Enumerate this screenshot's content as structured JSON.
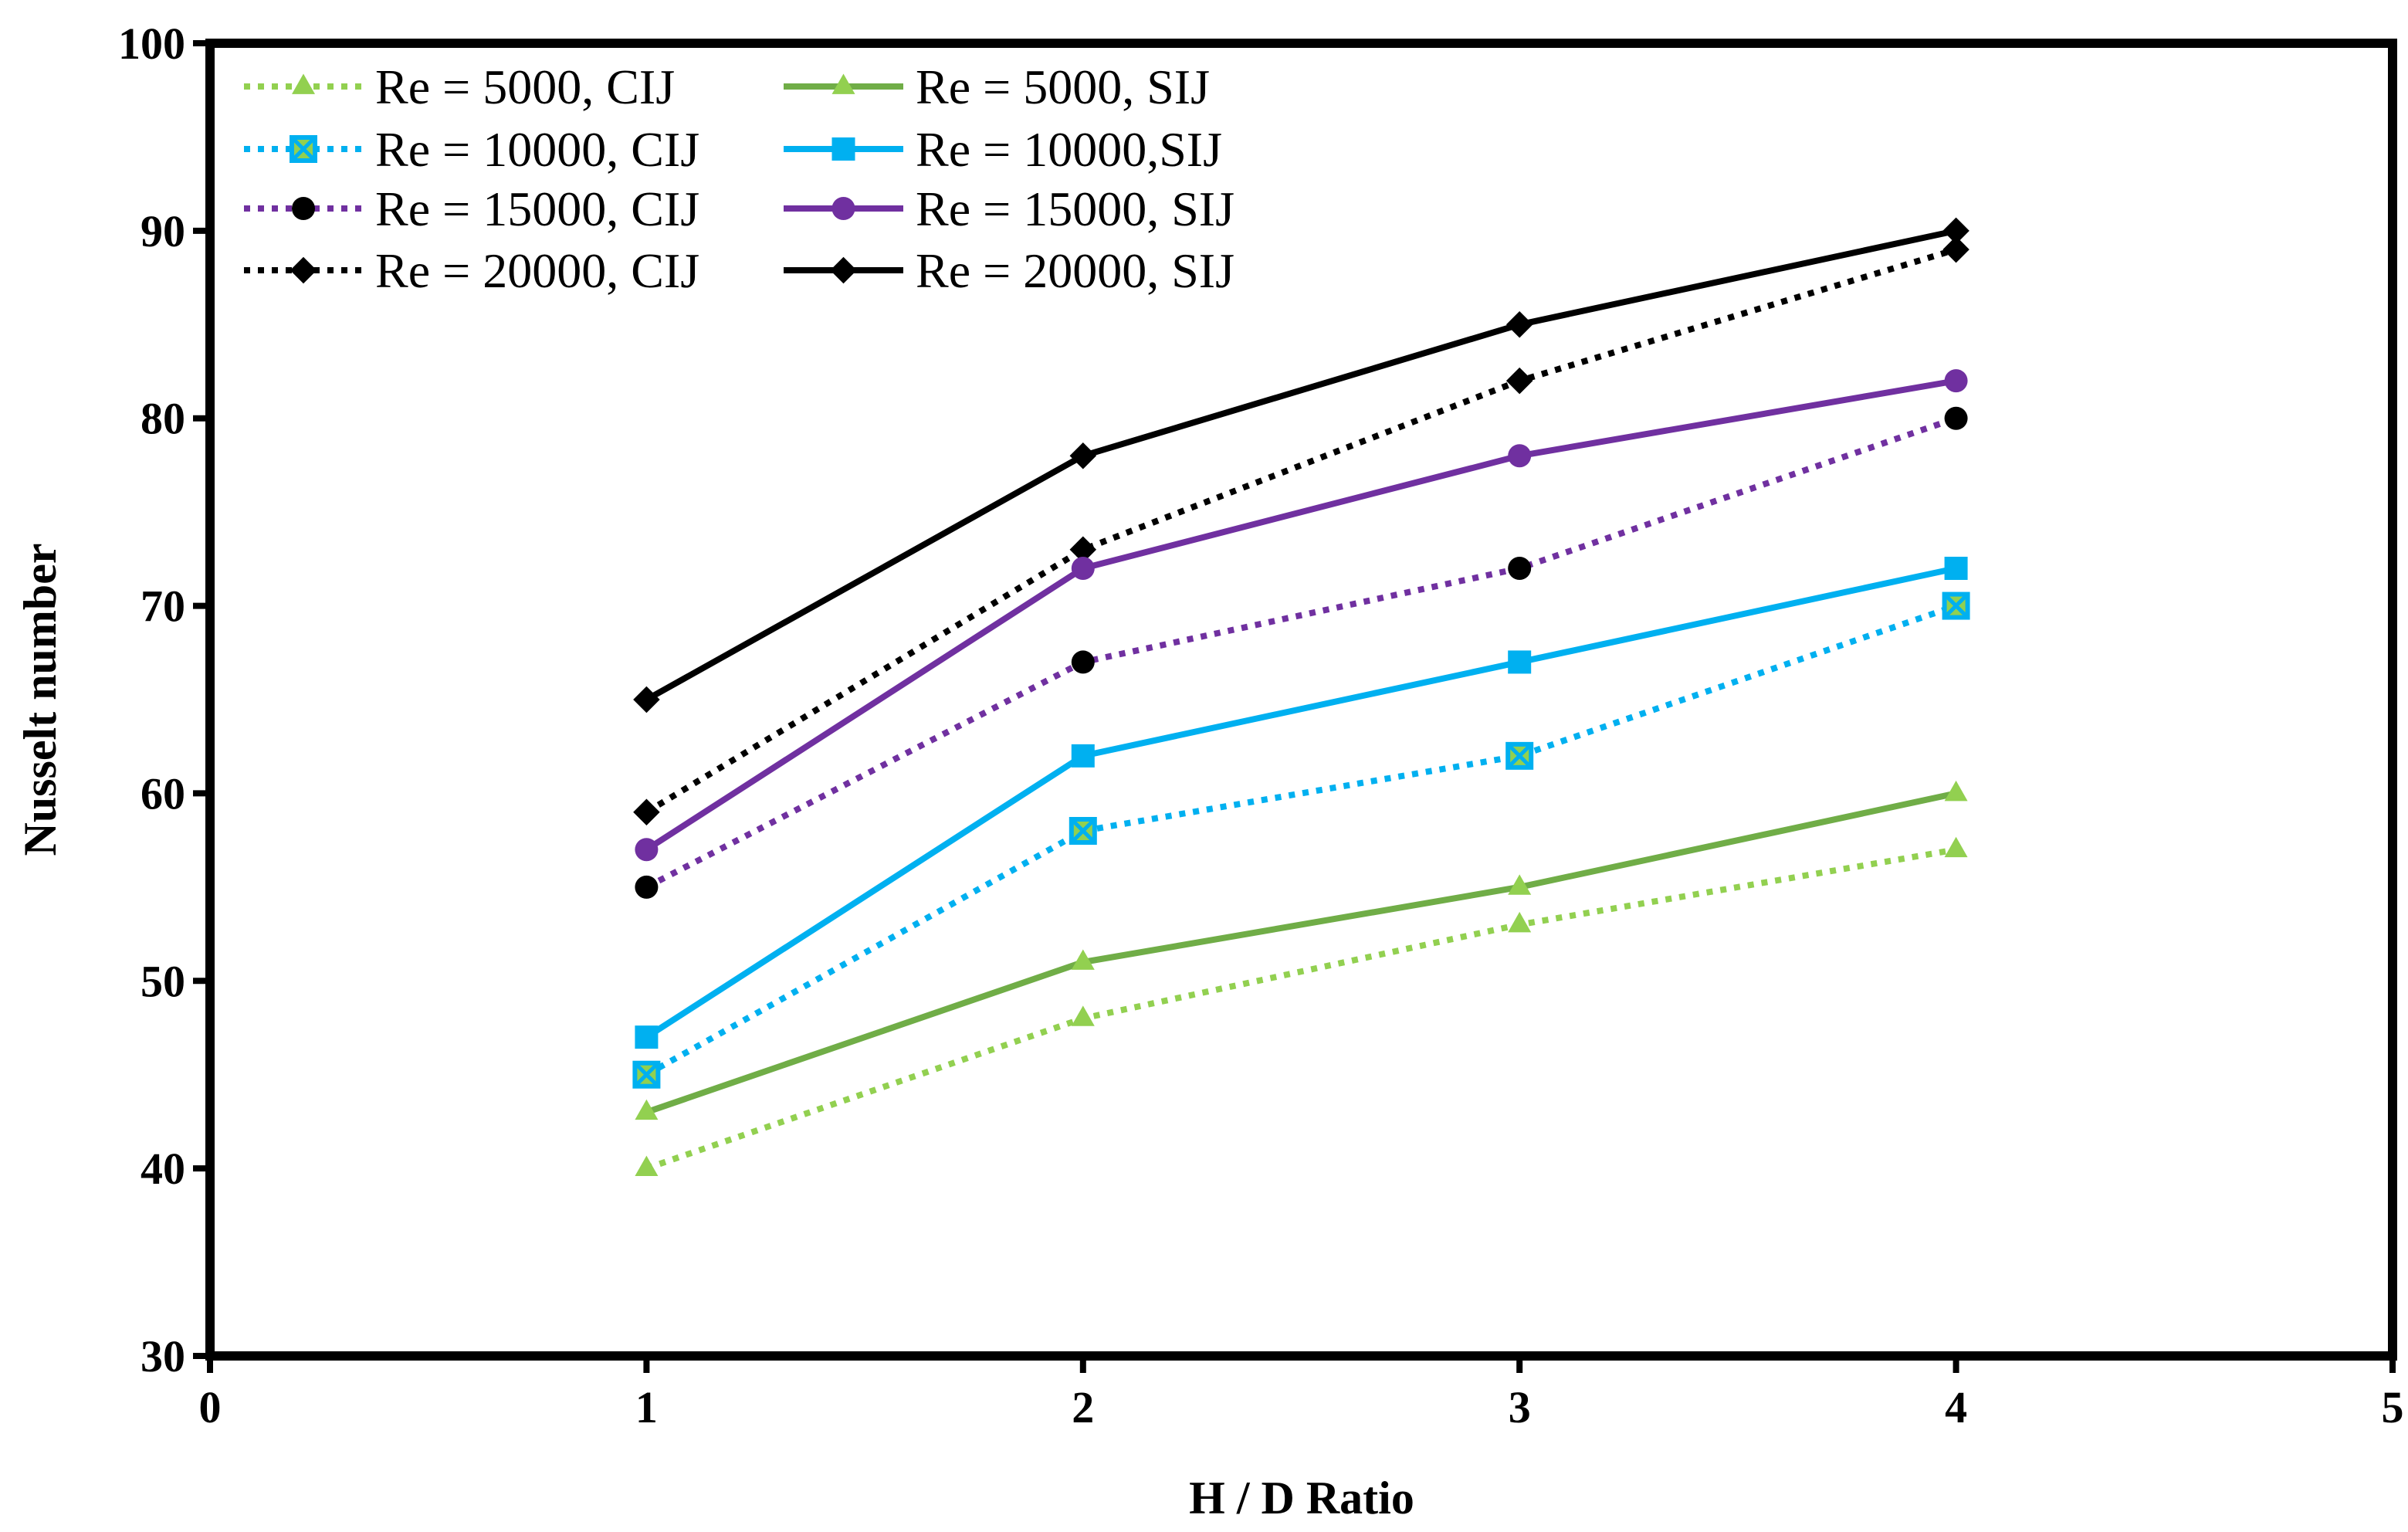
{
  "chart_data": {
    "type": "line",
    "title": "",
    "xlabel": "H / D Ratio",
    "ylabel": "Nusselt number",
    "xlim": [
      0,
      5
    ],
    "ylim": [
      30,
      100
    ],
    "xticks": [
      0,
      1,
      2,
      3,
      4,
      5
    ],
    "yticks": [
      30,
      40,
      50,
      60,
      70,
      80,
      90,
      100
    ],
    "grid": false,
    "legend_position": "top-left",
    "x": [
      1,
      2,
      3,
      4
    ],
    "series": [
      {
        "name": "Re = 5000, CIJ",
        "values": [
          40,
          48,
          53,
          57
        ],
        "color": "#92d050",
        "dash": "dotted",
        "marker": "triangle"
      },
      {
        "name": "Re = 10000, CIJ",
        "values": [
          45,
          58,
          62,
          70
        ],
        "color": "#00b0f0",
        "dash": "dotted",
        "marker": "square-x",
        "marker_fill": "#92d050"
      },
      {
        "name": "Re = 15000, CIJ",
        "values": [
          55,
          67,
          72,
          80
        ],
        "color": "#7030a0",
        "dash": "dotted",
        "marker": "circle",
        "marker_fill": "#000000"
      },
      {
        "name": "Re = 20000, CIJ",
        "values": [
          59,
          73,
          82,
          89
        ],
        "color": "#000000",
        "dash": "dotted",
        "marker": "diamond"
      },
      {
        "name": "Re = 5000, SIJ",
        "values": [
          43,
          51,
          55,
          60
        ],
        "color": "#70ad47",
        "dash": "solid",
        "marker": "triangle",
        "marker_fill": "#92d050"
      },
      {
        "name": "Re = 10000,SIJ",
        "values": [
          47,
          62,
          67,
          72
        ],
        "color": "#00b0f0",
        "dash": "solid",
        "marker": "square"
      },
      {
        "name": "Re = 15000, SIJ",
        "values": [
          57,
          72,
          78,
          82
        ],
        "color": "#7030a0",
        "dash": "solid",
        "marker": "circle"
      },
      {
        "name": "Re = 20000, SIJ",
        "values": [
          65,
          78,
          85,
          90
        ],
        "color": "#000000",
        "dash": "solid",
        "marker": "diamond"
      }
    ]
  }
}
